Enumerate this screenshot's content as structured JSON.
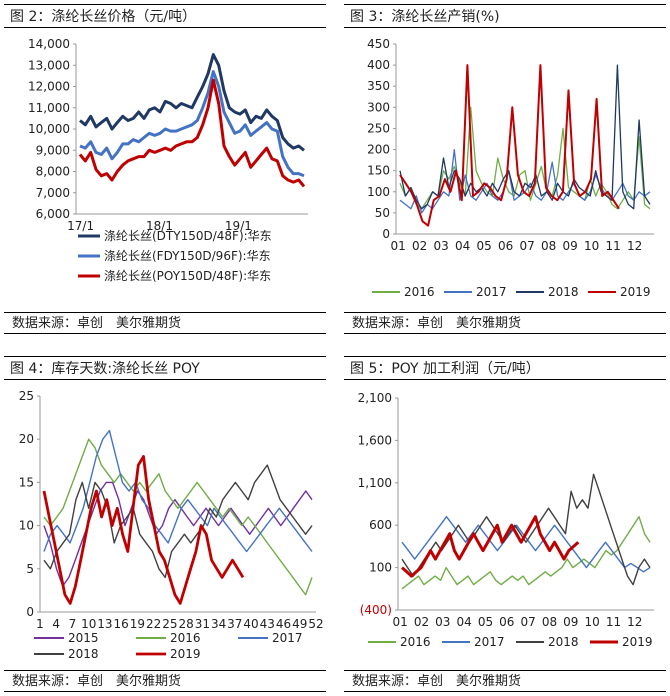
{
  "source_text": "数据来源：卓创　美尔雅期货",
  "charts": [
    {
      "title": "图 2：涤纶长丝价格（元/吨）",
      "chart_data": {
        "type": "line",
        "title": "涤纶长丝价格（元/吨）",
        "xlabel": "",
        "ylabel": "",
        "x_ticks": [
          "17/1",
          "18/1",
          "19/1"
        ],
        "y_ticks": [
          "14,000",
          "13,000",
          "12,000",
          "11,000",
          "10,000",
          "9,000",
          "8,000",
          "7,000",
          "6,000"
        ],
        "ylim": [
          6000,
          14000
        ],
        "legend_placement": "bottom",
        "grid": false,
        "series": [
          {
            "name": "涤纶长丝(DTY150D/48F):华东",
            "color": "#1F3864",
            "values": [
              10400,
              10200,
              10600,
              10100,
              10300,
              10500,
              10000,
              10300,
              10600,
              10400,
              10500,
              10800,
              10500,
              10900,
              11000,
              10800,
              11300,
              11200,
              11000,
              11200,
              11100,
              11000,
              11500,
              12000,
              12600,
              13500,
              13000,
              11800,
              11000,
              10800,
              10700,
              10900,
              10300,
              10600,
              10500,
              10900,
              10600,
              10400,
              9600,
              9300,
              9100,
              9200,
              9000
            ]
          },
          {
            "name": "涤纶长丝(FDY150D/96F):华东",
            "color": "#4472C4",
            "values": [
              9200,
              9100,
              9400,
              8900,
              8800,
              9100,
              8600,
              8900,
              9300,
              9300,
              9500,
              9400,
              9600,
              9800,
              9700,
              9800,
              10000,
              9900,
              9900,
              10000,
              10100,
              10200,
              10400,
              11000,
              11700,
              12700,
              12000,
              10800,
              10300,
              9800,
              9900,
              10200,
              9700,
              9900,
              10100,
              10300,
              10000,
              9900,
              8700,
              8200,
              7900,
              7900,
              7800
            ]
          },
          {
            "name": "涤纶长丝(POY150D/48F):华东",
            "color": "#C00000",
            "values": [
              8800,
              8500,
              8900,
              8100,
              7800,
              7900,
              7600,
              8000,
              8300,
              8500,
              8600,
              8700,
              8700,
              9000,
              8900,
              9000,
              9100,
              9000,
              9200,
              9300,
              9400,
              9400,
              9600,
              10200,
              11000,
              12300,
              11200,
              9200,
              8700,
              8300,
              8600,
              8900,
              8200,
              8500,
              8800,
              9100,
              8600,
              8500,
              7800,
              7600,
              7500,
              7600,
              7300
            ]
          }
        ]
      }
    },
    {
      "title": "图 3：涤纶长丝产销(%)",
      "chart_data": {
        "type": "line",
        "title": "涤纶长丝产销(%)",
        "xlabel": "",
        "ylabel": "",
        "x_ticks": [
          "01",
          "02",
          "03",
          "04",
          "05",
          "06",
          "07",
          "08",
          "09",
          "10",
          "11",
          "12"
        ],
        "y_ticks": [
          "450",
          "400",
          "350",
          "300",
          "250",
          "200",
          "150",
          "100",
          "50",
          "0"
        ],
        "ylim": [
          0,
          450
        ],
        "legend_placement": "bottom",
        "grid": false,
        "series": [
          {
            "name": "2016",
            "color": "#70AD47",
            "values": [
              120,
              90,
              110,
              70,
              60,
              80,
              100,
              90,
              150,
              130,
              160,
              120,
              90,
              300,
              150,
              120,
              100,
              90,
              180,
              130,
              100,
              90,
              140,
              150,
              80,
              120,
              160,
              100,
              90,
              140,
              250,
              110,
              100,
              90,
              80,
              130,
              90,
              120,
              100,
              70,
              60,
              80,
              100,
              80,
              230,
              70,
              60
            ]
          },
          {
            "name": "2017",
            "color": "#4472C4",
            "values": [
              80,
              70,
              60,
              90,
              50,
              70,
              60,
              80,
              100,
              90,
              200,
              80,
              140,
              90,
              80,
              100,
              120,
              90,
              80,
              100,
              150,
              80,
              90,
              100,
              120,
              90,
              80,
              100,
              170,
              90,
              80,
              100,
              120,
              90,
              80,
              100,
              140,
              110,
              90,
              80,
              100,
              120,
              90,
              80,
              100,
              90,
              100
            ]
          },
          {
            "name": "2018",
            "color": "#1F3864",
            "values": [
              150,
              90,
              110,
              80,
              60,
              70,
              100,
              90,
              180,
              110,
              150,
              130,
              90,
              120,
              100,
              110,
              90,
              120,
              100,
              130,
              150,
              100,
              90,
              120,
              110,
              140,
              90,
              100,
              80,
              120,
              100,
              90,
              130,
              110,
              100,
              90,
              150,
              100,
              90,
              80,
              400,
              100,
              70,
              60,
              270,
              90,
              70
            ]
          },
          {
            "name": "2019",
            "color": "#C00000",
            "values": [
              140,
              120,
              100,
              70,
              30,
              20,
              80,
              90,
              130,
              100,
              150,
              80,
              400,
              90,
              100,
              120,
              110,
              90,
              80,
              130,
              300,
              140,
              100,
              90,
              120,
              400,
              110,
              90,
              80,
              100,
              340,
              120,
              90,
              100,
              130,
              320,
              90,
              100,
              80,
              60
            ]
          }
        ]
      }
    },
    {
      "title": "图 4：库存天数:涤纶长丝 POY",
      "chart_data": {
        "type": "line",
        "title": "库存天数:涤纶长丝 POY",
        "xlabel": "",
        "ylabel": "",
        "x_ticks": [
          "1",
          "4",
          "7",
          "10",
          "13",
          "16",
          "19",
          "22",
          "25",
          "28",
          "31",
          "34",
          "37",
          "40",
          "43",
          "46",
          "49",
          "52"
        ],
        "y_ticks": [
          "25",
          "20",
          "15",
          "10",
          "5",
          "0"
        ],
        "ylim": [
          0,
          25
        ],
        "legend_placement": "bottom",
        "grid": false,
        "series": [
          {
            "name": "2015",
            "color": "#7030A0",
            "values": [
              10,
              8,
              5,
              3,
              4,
              6,
              8,
              10,
              12,
              14,
              15,
              15,
              13,
              10,
              12,
              14,
              13,
              11,
              9,
              10,
              12,
              13,
              12,
              11,
              10,
              11,
              12,
              11,
              10,
              11,
              12,
              11,
              10,
              9,
              10,
              11,
              12,
              11,
              10,
              11,
              12,
              13,
              14,
              13
            ]
          },
          {
            "name": "2016",
            "color": "#70AD47",
            "values": [
              11,
              10,
              11,
              12,
              14,
              16,
              18,
              20,
              19,
              17,
              16,
              15,
              16,
              15,
              14,
              15,
              14,
              15,
              16,
              14,
              13,
              12,
              13,
              14,
              15,
              14,
              13,
              12,
              11,
              12,
              11,
              10,
              11,
              10,
              9,
              8,
              7,
              6,
              5,
              4,
              3,
              2,
              4
            ]
          },
          {
            "name": "2017",
            "color": "#4472C4",
            "values": [
              7,
              9,
              10,
              9,
              8,
              10,
              12,
              15,
              18,
              20,
              21,
              18,
              15,
              14,
              15,
              13,
              12,
              10,
              9,
              8,
              10,
              12,
              13,
              12,
              11,
              10,
              12,
              11,
              10,
              9,
              8,
              7,
              8,
              9,
              10,
              11,
              12,
              11,
              10,
              9,
              8,
              7
            ]
          },
          {
            "name": "2018",
            "color": "#404040",
            "values": [
              6,
              5,
              7,
              8,
              9,
              13,
              15,
              12,
              15,
              14,
              12,
              8,
              10,
              11,
              12,
              9,
              8,
              7,
              5,
              4,
              7,
              8,
              9,
              8,
              9,
              10,
              12,
              11,
              13,
              14,
              15,
              14,
              13,
              15,
              16,
              17,
              15,
              13,
              12,
              11,
              10,
              9,
              10
            ]
          },
          {
            "name": "2019",
            "color": "#C00000",
            "values": [
              14,
              11,
              8,
              5,
              2,
              1,
              3,
              6,
              9,
              12,
              14,
              11,
              13,
              10,
              12,
              9,
              7,
              12,
              17,
              18,
              13,
              10,
              7,
              6,
              4,
              2,
              1,
              3,
              5,
              7,
              10,
              9,
              6,
              5,
              4,
              5,
              6,
              5,
              4
            ]
          }
        ]
      }
    },
    {
      "title": "图 5：POY 加工利润（元/吨）",
      "chart_data": {
        "type": "line",
        "title": "POY 加工利润（元/吨）",
        "xlabel": "",
        "ylabel": "",
        "x_ticks": [
          "01",
          "02",
          "03",
          "04",
          "05",
          "06",
          "07",
          "08",
          "09",
          "10",
          "11",
          "12"
        ],
        "y_ticks": [
          "2,100",
          "1,600",
          "1,100",
          "600",
          "100",
          "(400)"
        ],
        "ylim": [
          -400,
          2100
        ],
        "legend_placement": "bottom",
        "grid": false,
        "series": [
          {
            "name": "2016",
            "color": "#70AD47",
            "values": [
              -150,
              -100,
              -50,
              0,
              -100,
              -50,
              0,
              -50,
              100,
              0,
              -100,
              -50,
              0,
              -100,
              -50,
              0,
              50,
              -50,
              -100,
              -50,
              0,
              -50,
              0,
              -100,
              -50,
              0,
              50,
              0,
              50,
              100,
              200,
              100,
              150,
              200,
              150,
              100,
              200,
              300,
              250,
              300,
              400,
              500,
              600,
              700,
              500,
              400
            ]
          },
          {
            "name": "2017",
            "color": "#4472C4",
            "values": [
              400,
              300,
              200,
              300,
              400,
              500,
              600,
              700,
              600,
              500,
              400,
              500,
              600,
              500,
              400,
              300,
              400,
              500,
              600,
              500,
              400,
              300,
              400,
              500,
              600,
              500,
              400,
              300,
              200,
              100,
              200,
              300,
              400,
              300,
              200,
              100,
              150,
              100,
              50,
              100
            ]
          },
          {
            "name": "2018",
            "color": "#404040",
            "values": [
              200,
              100,
              0,
              100,
              200,
              300,
              400,
              300,
              400,
              500,
              600,
              500,
              400,
              500,
              600,
              700,
              600,
              500,
              400,
              500,
              600,
              500,
              400,
              500,
              600,
              700,
              800,
              700,
              600,
              500,
              1000,
              800,
              900,
              800,
              1200,
              1000,
              800,
              600,
              400,
              200,
              0,
              -100,
              100,
              200,
              100
            ]
          },
          {
            "name": "2019",
            "color": "#C00000",
            "values": [
              100,
              50,
              0,
              50,
              100,
              200,
              300,
              200,
              300,
              400,
              500,
              300,
              200,
              300,
              400,
              500,
              400,
              300,
              400,
              500,
              600,
              400,
              500,
              600,
              500,
              400,
              500,
              600,
              700,
              500,
              400,
              300,
              400,
              300,
              200,
              300,
              350,
              400
            ]
          }
        ]
      }
    }
  ]
}
